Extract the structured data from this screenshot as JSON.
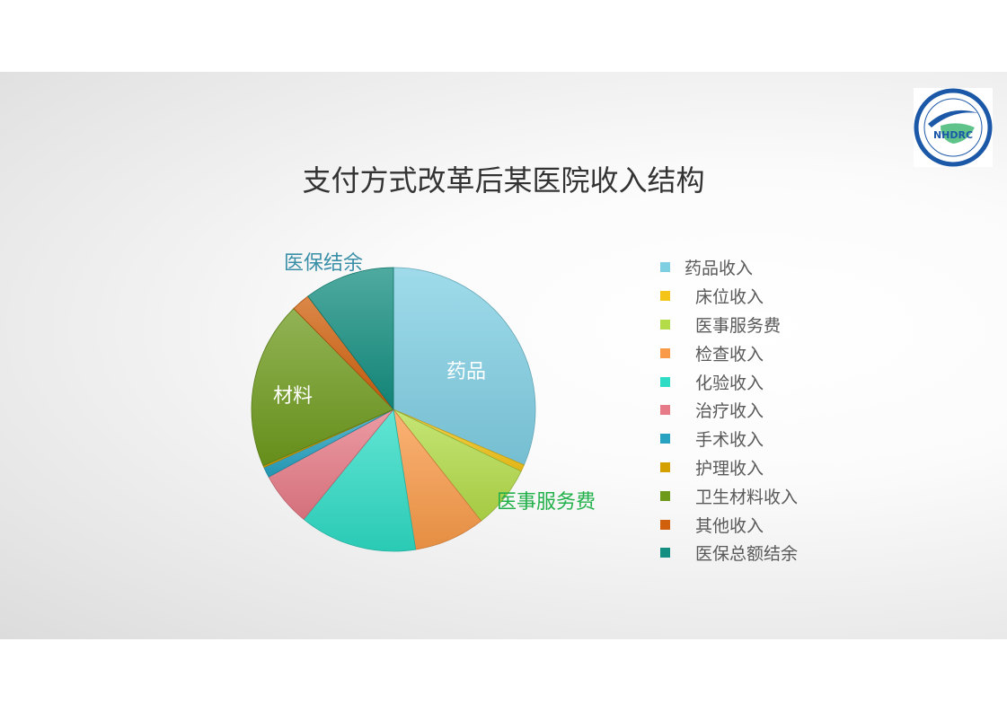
{
  "logo": {
    "text": "NHDRC",
    "ring_text": "国家卫生健康委卫生发展研究中心 CHINA NATIONAL HEALTH DEVELOPMENT RESEARCH CENTER"
  },
  "chart_data": {
    "type": "pie",
    "title": "支付方式改革后某医院收入结构",
    "start": "12 o'clock, clockwise",
    "legend_position": "right",
    "slices": [
      {
        "name": "药品收入",
        "value": 31.4,
        "color": "#7fcfe3"
      },
      {
        "name": "床位收入",
        "value": 0.8,
        "color": "#f4c518"
      },
      {
        "name": "医事服务费",
        "value": 7.2,
        "color": "#b3dc48"
      },
      {
        "name": "检查收入",
        "value": 8.1,
        "color": "#f99a48"
      },
      {
        "name": "化验收入",
        "value": 13.4,
        "color": "#2edcc5"
      },
      {
        "name": "治疗收入",
        "value": 6.2,
        "color": "#e67a86"
      },
      {
        "name": "手术收入",
        "value": 1.2,
        "color": "#27a2c0"
      },
      {
        "name": "护理收入",
        "value": 0.2,
        "color": "#d4a000"
      },
      {
        "name": "卫生材料收入",
        "value": 19.1,
        "color": "#6e9a1c"
      },
      {
        "name": "其他收入",
        "value": 2.1,
        "color": "#d0600c"
      },
      {
        "name": "医保总额结余",
        "value": 10.3,
        "color": "#148e80"
      }
    ],
    "annotations": [
      {
        "text": "药品",
        "color": "#ffffff"
      },
      {
        "text": "材料",
        "color": "#ffffff"
      },
      {
        "text": "医保结余",
        "color": "#3a8fa8"
      },
      {
        "text": "医事服务费",
        "color": "#22b04a"
      }
    ]
  }
}
